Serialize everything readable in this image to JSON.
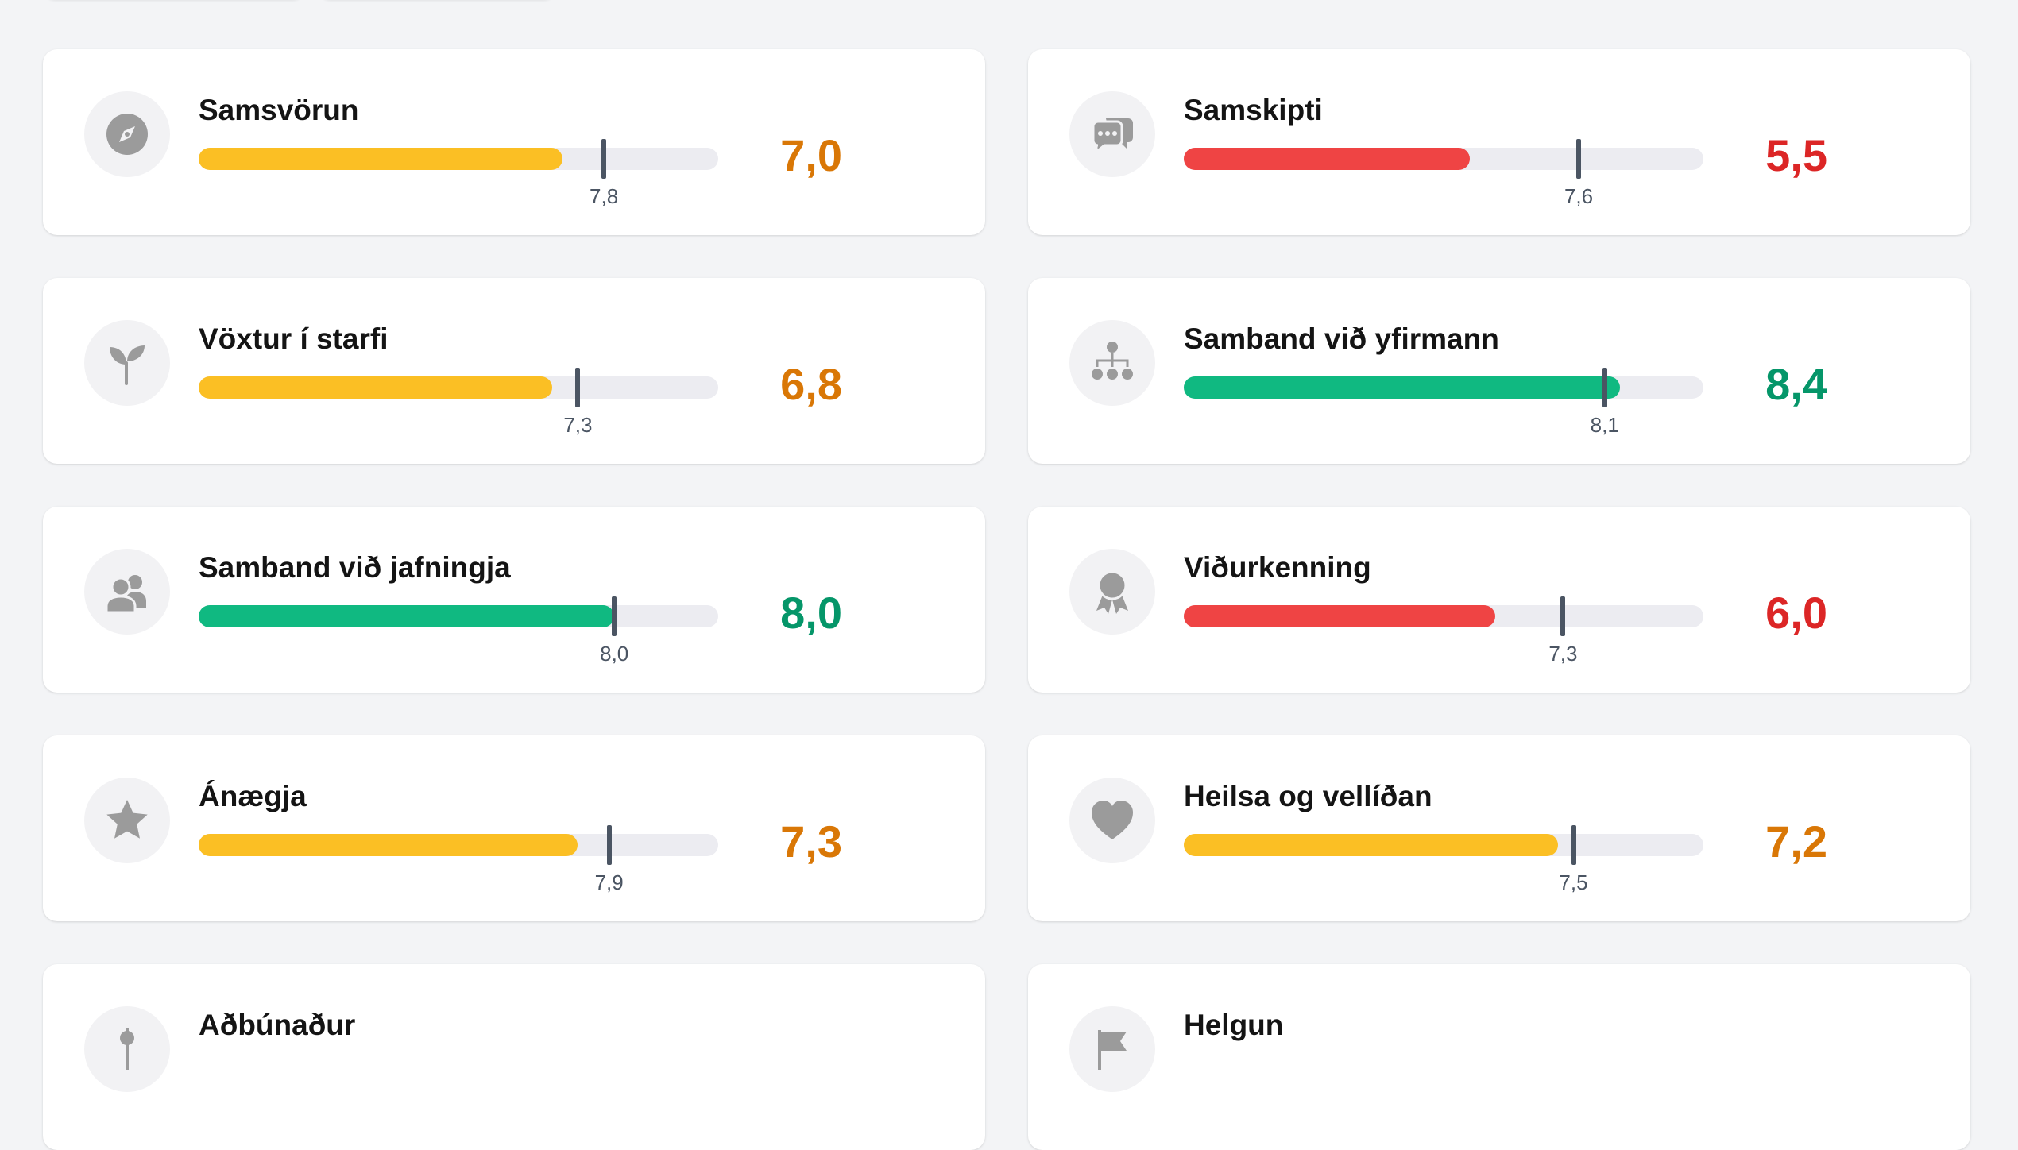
{
  "colors": {
    "yellow_fill": "#fbbf24",
    "red_fill": "#ef4444",
    "green_fill": "#10b981",
    "orange_score": "#d97706",
    "red_score": "#dc2626",
    "green_score": "#059669",
    "track": "#ececf1",
    "marker": "#4b5563",
    "icon": "#9b9b9b"
  },
  "cards": [
    {
      "title": "Samsvörun",
      "icon": "compass-icon",
      "score_label": "7,0",
      "score": 7.0,
      "benchmark_label": "7,8",
      "benchmark": 7.8,
      "status": "yellow"
    },
    {
      "title": "Samskipti",
      "icon": "chat-bubbles-icon",
      "score_label": "5,5",
      "score": 5.5,
      "benchmark_label": "7,6",
      "benchmark": 7.6,
      "status": "red"
    },
    {
      "title": "Vöxtur í starfi",
      "icon": "seedling-icon",
      "score_label": "6,8",
      "score": 6.8,
      "benchmark_label": "7,3",
      "benchmark": 7.3,
      "status": "yellow"
    },
    {
      "title": "Samband við yfirmann",
      "icon": "org-chart-icon",
      "score_label": "8,4",
      "score": 8.4,
      "benchmark_label": "8,1",
      "benchmark": 8.1,
      "status": "green"
    },
    {
      "title": "Samband við jafningja",
      "icon": "users-icon",
      "score_label": "8,0",
      "score": 8.0,
      "benchmark_label": "8,0",
      "benchmark": 8.0,
      "status": "green"
    },
    {
      "title": "Viðurkenning",
      "icon": "award-icon",
      "score_label": "6,0",
      "score": 6.0,
      "benchmark_label": "7,3",
      "benchmark": 7.3,
      "status": "red"
    },
    {
      "title": "Ánægja",
      "icon": "star-icon",
      "score_label": "7,3",
      "score": 7.3,
      "benchmark_label": "7,9",
      "benchmark": 7.9,
      "status": "yellow"
    },
    {
      "title": "Heilsa og vellíðan",
      "icon": "heart-icon",
      "score_label": "7,2",
      "score": 7.2,
      "benchmark_label": "7,5",
      "benchmark": 7.5,
      "status": "yellow"
    },
    {
      "title": "Aðbúnaður",
      "icon": "pin-icon",
      "score_label": "",
      "score": null,
      "benchmark_label": "",
      "benchmark": null,
      "status": ""
    },
    {
      "title": "Helgun",
      "icon": "flag-icon",
      "score_label": "",
      "score": null,
      "benchmark_label": "",
      "benchmark": null,
      "status": ""
    }
  ]
}
